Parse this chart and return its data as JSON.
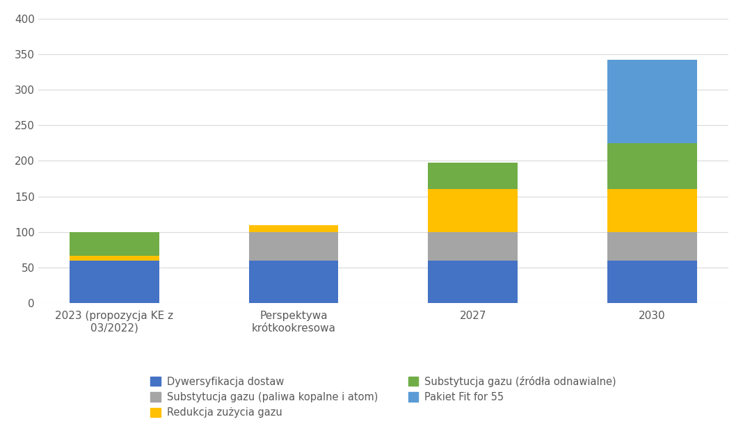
{
  "categories": [
    "2023 (propozycja KE z\n03/2022)",
    "Perspektywa\nkrótkookresowa",
    "2027",
    "2030"
  ],
  "series": [
    {
      "label": "Dywersyfikacja dostaw",
      "color": "#4472C4",
      "values": [
        60,
        60,
        60,
        60
      ]
    },
    {
      "label": "Substytucja gazu (paliwa kopalne i atom)",
      "color": "#A5A5A5",
      "values": [
        0,
        40,
        40,
        40
      ]
    },
    {
      "label": "Redukcja zużycia gazu",
      "color": "#FFC000",
      "values": [
        7,
        10,
        60,
        60
      ]
    },
    {
      "label": "Substytucja gazu (źródła odnawialne)",
      "color": "#70AD47",
      "values": [
        33,
        0,
        38,
        65
      ]
    },
    {
      "label": "Pakiet Fit for 55",
      "color": "#5B9BD5",
      "values": [
        0,
        0,
        0,
        117
      ]
    }
  ],
  "ylim": [
    0,
    400
  ],
  "yticks": [
    0,
    50,
    100,
    150,
    200,
    250,
    300,
    350,
    400
  ],
  "background_color": "#ffffff",
  "grid_color": "#d9d9d9",
  "figsize": [
    10.68,
    6.23
  ],
  "dpi": 100,
  "legend_items": [
    {
      "label": "Dywersyfikacja dostaw",
      "color": "#4472C4"
    },
    {
      "label": "Substytucja gazu (paliwa kopalne i atom)",
      "color": "#A5A5A5"
    },
    {
      "label": "Redukcja zużycia gazu",
      "color": "#FFC000"
    },
    {
      "label": "Substytucja gazu (źródła odnawialne)",
      "color": "#70AD47"
    },
    {
      "label": "Pakiet Fit for 55",
      "color": "#5B9BD5"
    }
  ]
}
